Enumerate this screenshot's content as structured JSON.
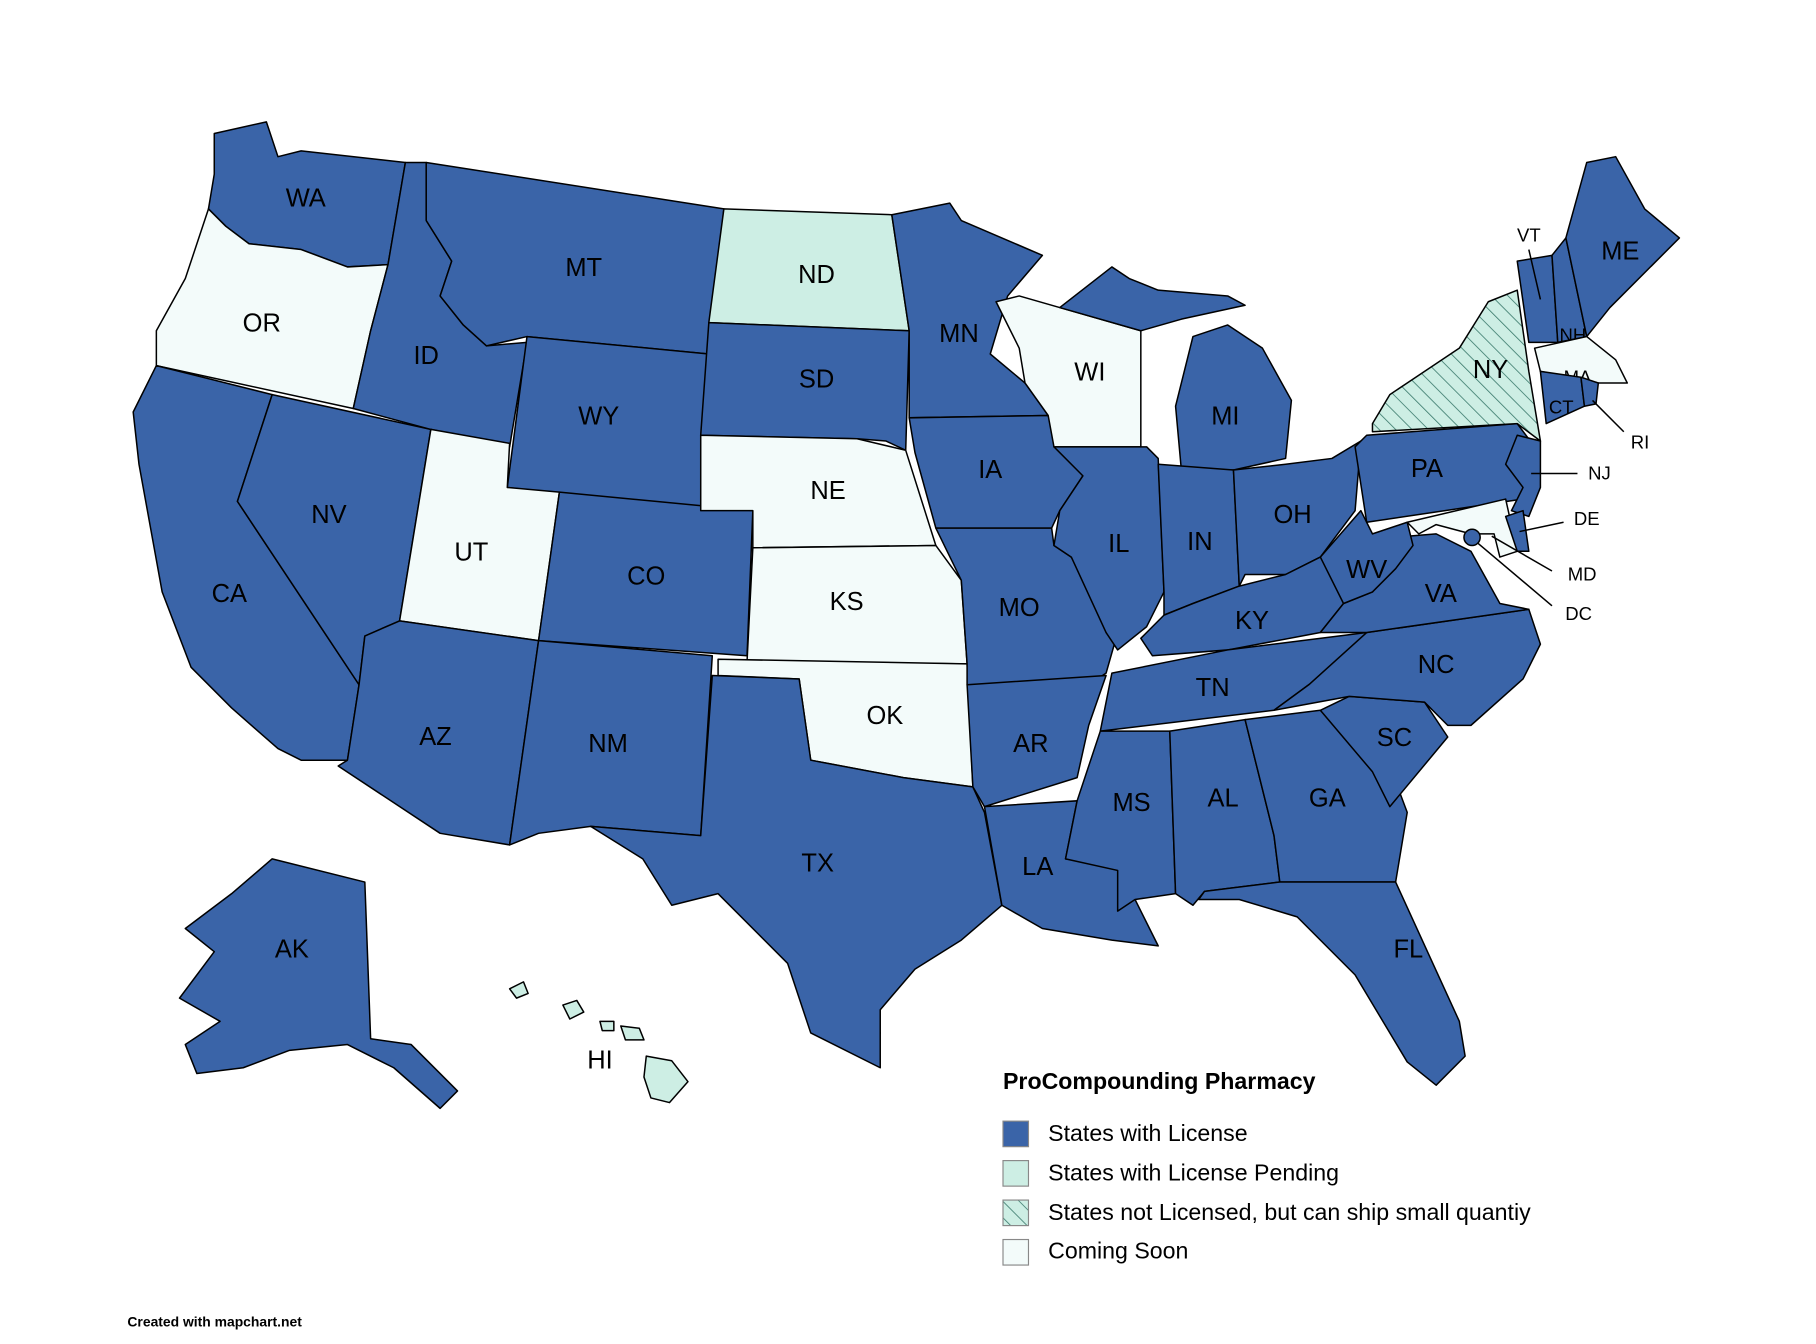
{
  "legend": {
    "title": "ProCompounding Pharmacy",
    "items": [
      {
        "label": "States with License",
        "color": "#3a64a8",
        "states": [
          "WA",
          "ID",
          "MT",
          "WY",
          "CO",
          "NV",
          "CA",
          "AZ",
          "NM",
          "SD",
          "MN",
          "IA",
          "MO",
          "AR",
          "TX",
          "LA",
          "IL",
          "MI",
          "IN",
          "OH",
          "KY",
          "TN",
          "MS",
          "AL",
          "GA",
          "FL",
          "SC",
          "NC",
          "VA",
          "WV",
          "PA",
          "NJ",
          "DE",
          "CT",
          "RI",
          "VT",
          "NH",
          "ME",
          "DC",
          "AK"
        ]
      },
      {
        "label": "States with License Pending",
        "color": "#cdeee4",
        "states": [
          "ND",
          "HI"
        ]
      },
      {
        "label": "States not Licensed, but can ship small quantiy",
        "color": "#cdeee4",
        "hatched": true,
        "states": [
          "NY"
        ]
      },
      {
        "label": "Coming Soon",
        "color": "#f3fbfa",
        "states": [
          "OR",
          "UT",
          "NE",
          "KS",
          "OK",
          "WI",
          "MA",
          "MD"
        ]
      }
    ]
  },
  "footer": "Created with mapchart.net"
}
